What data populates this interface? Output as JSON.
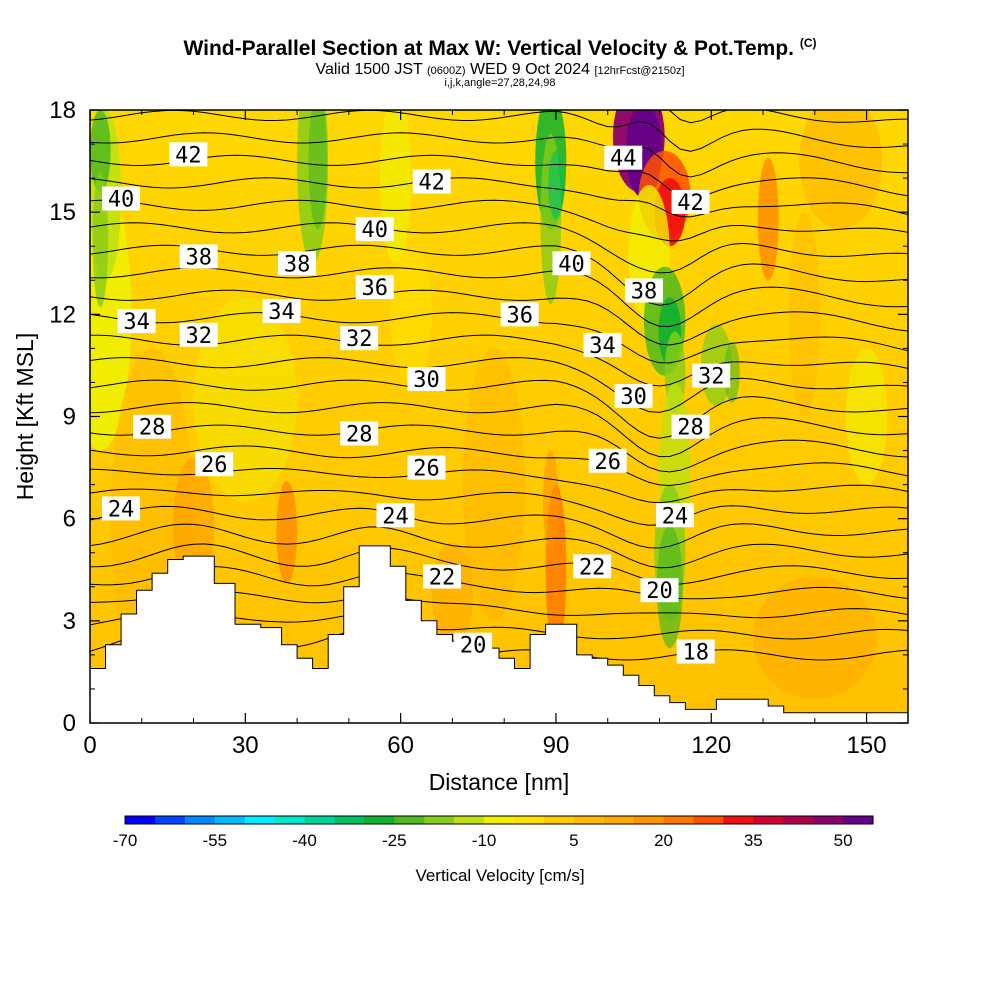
{
  "title": {
    "main": "Wind-Parallel Section at Max W: Vertical Velocity & Pot.Temp.",
    "copyright": "(C)",
    "valid_prefix": "Valid 1500 JST",
    "valid_utc": "(0600Z)",
    "valid_date": "WED 9 Oct 2024",
    "forecast": "[12hrFcst@2150z]",
    "indices": "i,j,k,angle=27,28,24,98"
  },
  "chart_data": {
    "type": "contour",
    "title": "Wind-Parallel Section at Max W: Vertical Velocity & Pot.Temp.",
    "xlabel": "Distance [nm]",
    "ylabel": "Height [Kft MSL]",
    "xlim": [
      0,
      158
    ],
    "ylim": [
      0,
      18
    ],
    "xticks": [
      "0",
      "30",
      "60",
      "90",
      "120",
      "150"
    ],
    "yticks": [
      "0",
      "3",
      "6",
      "9",
      "12",
      "15",
      "18"
    ],
    "colorbar": {
      "label": "Vertical Velocity [cm/s]",
      "tick_labels": [
        "-70",
        "-55",
        "-40",
        "-25",
        "-10",
        "5",
        "20",
        "35",
        "50"
      ],
      "min": -70,
      "max": 55,
      "step": 5,
      "colors": [
        "#0000ff",
        "#0044ff",
        "#0088ff",
        "#00bbff",
        "#00eeff",
        "#00e8c8",
        "#00d49a",
        "#00c060",
        "#10b030",
        "#50b820",
        "#88cc18",
        "#c0e010",
        "#f0f000",
        "#ffe000",
        "#ffcc00",
        "#ffb800",
        "#ffa800",
        "#ff9400",
        "#ff7800",
        "#ff5000",
        "#ee1010",
        "#d00030",
        "#b00050",
        "#8c0070",
        "#66008a"
      ]
    },
    "terrain": {
      "x": [
        0,
        3,
        3,
        6,
        6,
        9,
        9,
        12,
        12,
        15,
        15,
        18,
        18,
        24,
        24,
        28,
        28,
        33,
        33,
        37,
        37,
        40,
        40,
        43,
        43,
        46,
        46,
        49,
        49,
        52,
        52,
        58,
        58,
        61,
        61,
        64,
        64,
        67,
        67,
        70,
        70,
        73,
        73,
        76,
        76,
        79,
        79,
        82,
        82,
        85,
        85,
        88,
        88,
        94,
        94,
        97,
        97,
        100,
        100,
        103,
        103,
        106,
        106,
        109,
        109,
        112,
        112,
        115,
        115,
        118,
        118,
        121,
        121,
        131,
        131,
        134,
        134,
        137,
        137,
        140,
        140,
        143,
        143,
        146,
        146,
        158
      ],
      "y": [
        1.6,
        1.6,
        2.3,
        2.3,
        3.2,
        3.2,
        3.9,
        3.9,
        4.4,
        4.4,
        4.8,
        4.8,
        4.9,
        4.9,
        4.1,
        4.1,
        2.9,
        2.9,
        2.8,
        2.8,
        2.3,
        2.3,
        1.9,
        1.9,
        1.6,
        1.6,
        2.6,
        2.6,
        4.0,
        4.0,
        5.2,
        5.2,
        4.6,
        4.6,
        3.6,
        3.6,
        3.0,
        3.0,
        2.6,
        2.6,
        2.4,
        2.4,
        2.4,
        2.4,
        2.2,
        2.2,
        1.9,
        1.9,
        1.6,
        1.6,
        2.6,
        2.6,
        2.9,
        2.9,
        2.0,
        2.0,
        1.9,
        1.9,
        1.7,
        1.7,
        1.4,
        1.4,
        1.1,
        1.1,
        0.8,
        0.8,
        0.6,
        0.6,
        0.4,
        0.4,
        0.4,
        0.4,
        0.7,
        0.7,
        0.5,
        0.5,
        0.3,
        0.3,
        0.3,
        0.3,
        0.3,
        0.3,
        0.3,
        0.3,
        0.3,
        0.3
      ]
    },
    "theta_label_values": [
      "42",
      "40",
      "38",
      "34",
      "32",
      "28",
      "26",
      "24",
      "38",
      "34",
      "32",
      "42",
      "40",
      "36",
      "30",
      "28",
      "26",
      "24",
      "22",
      "20",
      "36",
      "40",
      "44",
      "22",
      "26",
      "34",
      "30",
      "38",
      "42",
      "24",
      "20",
      "18",
      "28",
      "32"
    ],
    "theta_labels": [
      {
        "text": "42",
        "x": 19,
        "y": 16.7
      },
      {
        "text": "40",
        "x": 6,
        "y": 15.4
      },
      {
        "text": "38",
        "x": 21,
        "y": 13.7
      },
      {
        "text": "34",
        "x": 9,
        "y": 11.8
      },
      {
        "text": "32",
        "x": 21,
        "y": 11.4
      },
      {
        "text": "28",
        "x": 12,
        "y": 8.7
      },
      {
        "text": "26",
        "x": 24,
        "y": 7.6
      },
      {
        "text": "24",
        "x": 6,
        "y": 6.3
      },
      {
        "text": "38",
        "x": 40,
        "y": 13.5
      },
      {
        "text": "34",
        "x": 37,
        "y": 12.1
      },
      {
        "text": "32",
        "x": 52,
        "y": 11.3
      },
      {
        "text": "42",
        "x": 66,
        "y": 15.9
      },
      {
        "text": "40",
        "x": 55,
        "y": 14.5
      },
      {
        "text": "36",
        "x": 55,
        "y": 12.8
      },
      {
        "text": "30",
        "x": 65,
        "y": 10.1
      },
      {
        "text": "28",
        "x": 52,
        "y": 8.5
      },
      {
        "text": "26",
        "x": 65,
        "y": 7.5
      },
      {
        "text": "24",
        "x": 59,
        "y": 6.1
      },
      {
        "text": "22",
        "x": 68,
        "y": 4.3
      },
      {
        "text": "20",
        "x": 74,
        "y": 2.3
      },
      {
        "text": "36",
        "x": 83,
        "y": 12.0
      },
      {
        "text": "40",
        "x": 93,
        "y": 13.5
      },
      {
        "text": "44",
        "x": 103,
        "y": 16.6
      },
      {
        "text": "22",
        "x": 97,
        "y": 4.6
      },
      {
        "text": "26",
        "x": 100,
        "y": 7.7
      },
      {
        "text": "34",
        "x": 99,
        "y": 11.1
      },
      {
        "text": "30",
        "x": 105,
        "y": 9.6
      },
      {
        "text": "38",
        "x": 107,
        "y": 12.7
      },
      {
        "text": "42",
        "x": 116,
        "y": 15.3
      },
      {
        "text": "24",
        "x": 113,
        "y": 6.1
      },
      {
        "text": "20",
        "x": 110,
        "y": 3.9
      },
      {
        "text": "18",
        "x": 117,
        "y": 2.1
      },
      {
        "text": "28",
        "x": 116,
        "y": 8.7
      },
      {
        "text": "32",
        "x": 120,
        "y": 10.2
      }
    ]
  }
}
